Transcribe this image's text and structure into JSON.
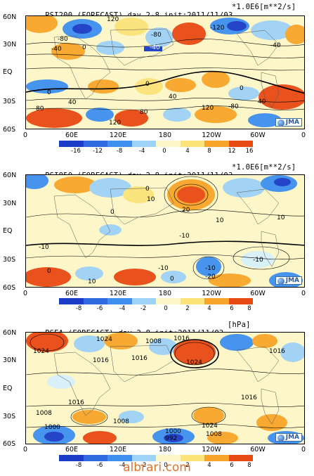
{
  "panels": [
    {
      "title": "PSI200 (FORECAST) day 2-8 init:2011/11/03",
      "units": "*1.0E6[m**2/s]",
      "colorbar_ticks": [
        "-16",
        "-12",
        "-8",
        "-4",
        "0",
        "4",
        "8",
        "12",
        "16"
      ],
      "contour_labels": [
        "120",
        "80",
        "40",
        "-80",
        "-40",
        "0",
        "-120",
        "40",
        "-40",
        "0",
        "40",
        "80",
        "-80",
        "40",
        "120",
        "80",
        "120",
        "40",
        "0",
        "80",
        "-120"
      ],
      "shading": "psi200"
    },
    {
      "title": "PSI850 (FORECAST) day 2-8 init:2011/11/03",
      "units": "*1.0E6[m**2/s]",
      "colorbar_ticks": [
        "-8",
        "-6",
        "-4",
        "-2",
        "0",
        "2",
        "4",
        "6",
        "8"
      ],
      "contour_labels": [
        "0",
        "10",
        "20",
        "0",
        "-10",
        "10",
        "0",
        "-10",
        "-10",
        "-20",
        "-10",
        "0",
        "-10",
        "-10",
        "10",
        "10",
        "0",
        "-20"
      ],
      "shading": "psi850"
    },
    {
      "title": "PSEA (FORECAST) day 2-8 init:2011/11/03",
      "units": "[hPa]",
      "colorbar_ticks": [
        "-8",
        "-6",
        "-4",
        "-2",
        "0",
        "2",
        "4",
        "6",
        "8"
      ],
      "contour_labels": [
        "1024",
        "1024",
        "1008",
        "1016",
        "1016",
        "1016",
        "1024",
        "1016",
        "1008",
        "1016",
        "1016",
        "1008",
        "1024",
        "1008",
        "1000",
        "1000",
        "992",
        "1000",
        "1008",
        "1024"
      ],
      "shading": "psea"
    }
  ],
  "lat_labels": [
    "60N",
    "30N",
    "EQ",
    "30S",
    "60S"
  ],
  "lon_labels": [
    "0",
    "60E",
    "120E",
    "180",
    "120W",
    "60W",
    "0"
  ],
  "logo_text": "JMA",
  "watermark": "albrari.com",
  "colors": {
    "neg_strong": "#1a3cc8",
    "neg_mid": "#3d8ff0",
    "neg_light": "#9fd2f7",
    "neg_pale": "#d7f0fb",
    "pos_pale": "#fdf6c8",
    "pos_light": "#fbe37a",
    "pos_mid": "#f7a52a",
    "pos_strong": "#e84a14"
  }
}
